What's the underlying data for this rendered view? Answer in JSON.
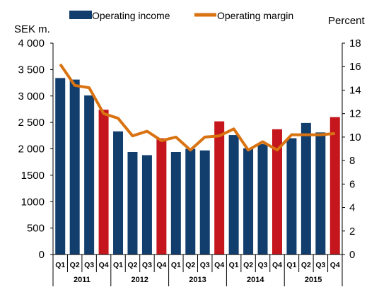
{
  "chart_data": {
    "type": "bar",
    "left_axis_label": "SEK m.",
    "right_axis_label": "Percent",
    "legend_position": "top",
    "grid": false,
    "left_ylim": [
      0,
      4000
    ],
    "left_yticks": [
      "0",
      "500",
      "1000",
      "1500",
      "2 000",
      "2 500",
      "3 000",
      "3 500",
      "4 000"
    ],
    "right_ylim": [
      0,
      18
    ],
    "right_yticks": [
      "0",
      "2",
      "4",
      "6",
      "8",
      "10",
      "12",
      "14",
      "16",
      "18"
    ],
    "years": [
      "2011",
      "2012",
      "2013",
      "2014",
      "2015"
    ],
    "quarters": [
      "Q1",
      "Q2",
      "Q3",
      "Q4"
    ],
    "colors": {
      "income": "#123e6d",
      "q4": "#c4161c",
      "margin": "#d97312"
    },
    "series": [
      {
        "name": "Operating income",
        "kind": "bar",
        "axis": "left",
        "values": [
          3340,
          3310,
          3010,
          2740,
          2330,
          1940,
          1880,
          2200,
          1940,
          2000,
          1970,
          2520,
          2260,
          2010,
          2090,
          2370,
          2200,
          2490,
          2310,
          2600
        ]
      },
      {
        "name": "Operating margin",
        "kind": "line",
        "axis": "right",
        "values": [
          16.2,
          14.4,
          14.2,
          12.0,
          11.6,
          10.1,
          10.5,
          9.7,
          10.0,
          8.9,
          10.0,
          10.1,
          10.7,
          8.9,
          9.6,
          8.9,
          10.2,
          10.2,
          10.2,
          10.3
        ]
      }
    ]
  }
}
